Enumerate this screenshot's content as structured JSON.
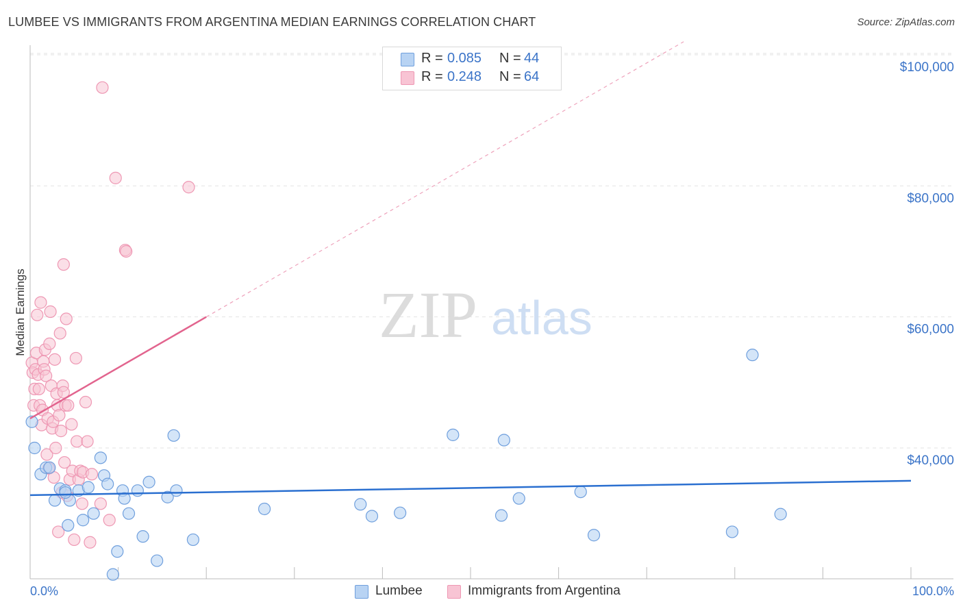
{
  "title": "LUMBEE VS IMMIGRANTS FROM ARGENTINA MEDIAN EARNINGS CORRELATION CHART",
  "source": "Source: ZipAtlas.com",
  "watermark": {
    "zip": "ZIP",
    "atlas": "atlas"
  },
  "legend": {
    "r_label": "R =",
    "n_label": "N =",
    "rows": [
      {
        "r_value": "0.085",
        "n_value": "44"
      },
      {
        "r_value": "0.248",
        "n_value": "64"
      }
    ]
  },
  "colors": {
    "lumbee_fill": "#b8d3f3",
    "lumbee_stroke": "#6f9fdd",
    "lumbee_line": "#2a6fd0",
    "argentina_fill": "#f8c4d4",
    "argentina_stroke": "#ee97b3",
    "argentina_line": "#e2648e",
    "axis_value": "#3b74c8"
  },
  "chart_data": {
    "type": "scatter",
    "title": "LUMBEE VS IMMIGRANTS FROM ARGENTINA MEDIAN EARNINGS CORRELATION CHART",
    "xlabel": "",
    "ylabel": "Median Earnings",
    "x_tick_labels": [
      "0.0%",
      "100.0%"
    ],
    "y_tick_labels": [
      "$40,000",
      "$60,000",
      "$80,000",
      "$100,000"
    ],
    "y_ticks": [
      40000,
      60000,
      80000,
      100000
    ],
    "xlim": [
      0,
      100
    ],
    "ylim": [
      20000,
      102000
    ],
    "grid": true,
    "legend_position": "top-center and bottom",
    "series": [
      {
        "name": "Lumbee",
        "r": 0.085,
        "n": 44,
        "trend": {
          "x": [
            0,
            100
          ],
          "y": [
            32800,
            35000
          ],
          "solid_until": 100
        },
        "points": [
          [
            0.2,
            44000
          ],
          [
            0.5,
            40000
          ],
          [
            1.2,
            36000
          ],
          [
            1.8,
            37000
          ],
          [
            2.2,
            37000
          ],
          [
            2.8,
            32000
          ],
          [
            3.4,
            33800
          ],
          [
            4.0,
            33500
          ],
          [
            4.3,
            28200
          ],
          [
            4.5,
            32000
          ],
          [
            5.5,
            33500
          ],
          [
            6.0,
            29000
          ],
          [
            6.6,
            34000
          ],
          [
            7.2,
            30000
          ],
          [
            8.0,
            38500
          ],
          [
            8.4,
            35800
          ],
          [
            8.8,
            34500
          ],
          [
            9.4,
            20700
          ],
          [
            9.9,
            24200
          ],
          [
            10.5,
            33500
          ],
          [
            10.7,
            32300
          ],
          [
            11.2,
            30000
          ],
          [
            12.2,
            33500
          ],
          [
            12.8,
            26500
          ],
          [
            13.5,
            34800
          ],
          [
            14.4,
            22800
          ],
          [
            15.6,
            32500
          ],
          [
            16.3,
            41900
          ],
          [
            16.6,
            33500
          ],
          [
            18.5,
            26000
          ],
          [
            26.6,
            30700
          ],
          [
            37.5,
            31400
          ],
          [
            38.8,
            29600
          ],
          [
            42.0,
            30100
          ],
          [
            48.0,
            42000
          ],
          [
            53.5,
            29700
          ],
          [
            53.8,
            41200
          ],
          [
            55.5,
            32300
          ],
          [
            62.5,
            33300
          ],
          [
            64.0,
            26700
          ],
          [
            79.7,
            27200
          ],
          [
            82.0,
            54200
          ],
          [
            85.2,
            29900
          ],
          [
            4.0,
            33200
          ]
        ]
      },
      {
        "name": "Immigrants from Argentina",
        "r": 0.248,
        "n": 64,
        "trend": {
          "x": [
            0,
            100
          ],
          "y": [
            44500,
            122000
          ],
          "solid_until": 20
        },
        "points": [
          [
            0.2,
            53000
          ],
          [
            0.3,
            51500
          ],
          [
            0.4,
            46500
          ],
          [
            0.5,
            49000
          ],
          [
            0.6,
            52000
          ],
          [
            0.7,
            54500
          ],
          [
            0.8,
            60300
          ],
          [
            0.9,
            51200
          ],
          [
            1.0,
            49000
          ],
          [
            1.1,
            46500
          ],
          [
            1.2,
            62200
          ],
          [
            1.3,
            43500
          ],
          [
            1.4,
            45800
          ],
          [
            1.5,
            53200
          ],
          [
            1.6,
            52000
          ],
          [
            1.7,
            55000
          ],
          [
            1.8,
            51000
          ],
          [
            1.9,
            39000
          ],
          [
            2.0,
            44500
          ],
          [
            2.1,
            36900
          ],
          [
            2.2,
            55900
          ],
          [
            2.3,
            60800
          ],
          [
            2.4,
            49500
          ],
          [
            2.5,
            43000
          ],
          [
            2.6,
            44000
          ],
          [
            2.7,
            35500
          ],
          [
            2.8,
            53500
          ],
          [
            2.9,
            40000
          ],
          [
            3.0,
            48300
          ],
          [
            3.1,
            46500
          ],
          [
            3.2,
            27200
          ],
          [
            3.3,
            45000
          ],
          [
            3.4,
            57500
          ],
          [
            3.5,
            42600
          ],
          [
            3.6,
            33200
          ],
          [
            3.7,
            49500
          ],
          [
            3.8,
            48500
          ],
          [
            3.9,
            37800
          ],
          [
            4.0,
            46500
          ],
          [
            4.1,
            59700
          ],
          [
            4.2,
            32700
          ],
          [
            4.3,
            46500
          ],
          [
            4.5,
            35200
          ],
          [
            4.7,
            43600
          ],
          [
            4.8,
            36500
          ],
          [
            5.0,
            26000
          ],
          [
            5.2,
            53700
          ],
          [
            5.3,
            41000
          ],
          [
            5.5,
            35200
          ],
          [
            5.7,
            36500
          ],
          [
            5.9,
            31500
          ],
          [
            6.0,
            36300
          ],
          [
            6.3,
            47000
          ],
          [
            6.5,
            41000
          ],
          [
            6.8,
            25600
          ],
          [
            7.0,
            36000
          ],
          [
            8.0,
            31500
          ],
          [
            8.2,
            95000
          ],
          [
            9.0,
            29000
          ],
          [
            9.7,
            81200
          ],
          [
            10.8,
            70200
          ],
          [
            10.9,
            70000
          ],
          [
            18.0,
            79800
          ],
          [
            3.8,
            68000
          ]
        ]
      }
    ]
  },
  "bottom_legend": {
    "series_a": "Lumbee",
    "series_b": "Immigrants from Argentina"
  }
}
